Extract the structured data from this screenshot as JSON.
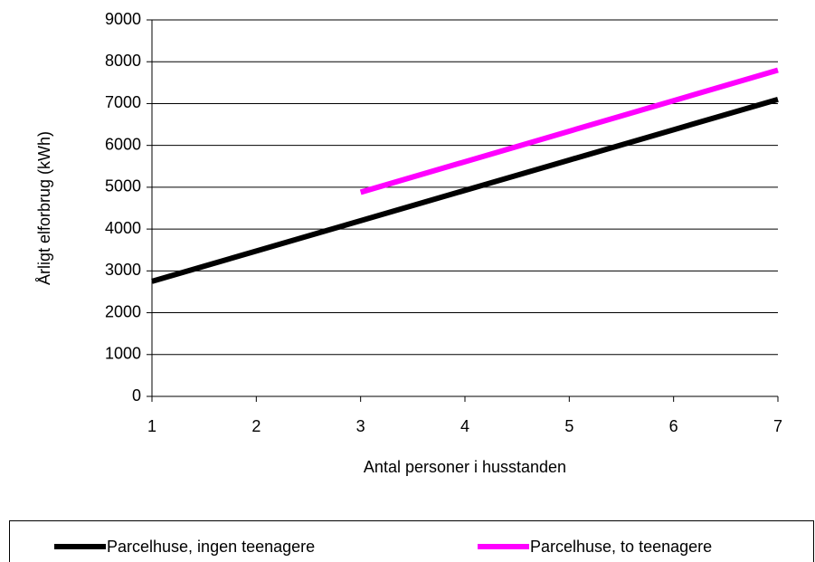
{
  "chart_data": {
    "type": "line",
    "x_label": "Antal personer i husstanden",
    "y_label": "Årligt elforbrug (kWh)",
    "x": [
      1,
      2,
      3,
      4,
      5,
      6,
      7
    ],
    "series": [
      {
        "name": "Parcelhuse, ingen teenagere",
        "color": "#000000",
        "values": [
          2750,
          3475,
          4200,
          4925,
          5650,
          6375,
          7100
        ]
      },
      {
        "name": "Parcelhuse, to teenagere",
        "color": "#ff00ff",
        "values": [
          null,
          null,
          4880,
          5610,
          6340,
          7070,
          7800
        ]
      }
    ],
    "xlim": [
      1,
      7
    ],
    "xticks": [
      1,
      2,
      3,
      4,
      5,
      6,
      7
    ],
    "ylim": [
      0,
      9000
    ],
    "yticks": [
      0,
      1000,
      2000,
      3000,
      4000,
      5000,
      6000,
      7000,
      8000,
      9000
    ],
    "grid": true,
    "legend": "bottom"
  }
}
